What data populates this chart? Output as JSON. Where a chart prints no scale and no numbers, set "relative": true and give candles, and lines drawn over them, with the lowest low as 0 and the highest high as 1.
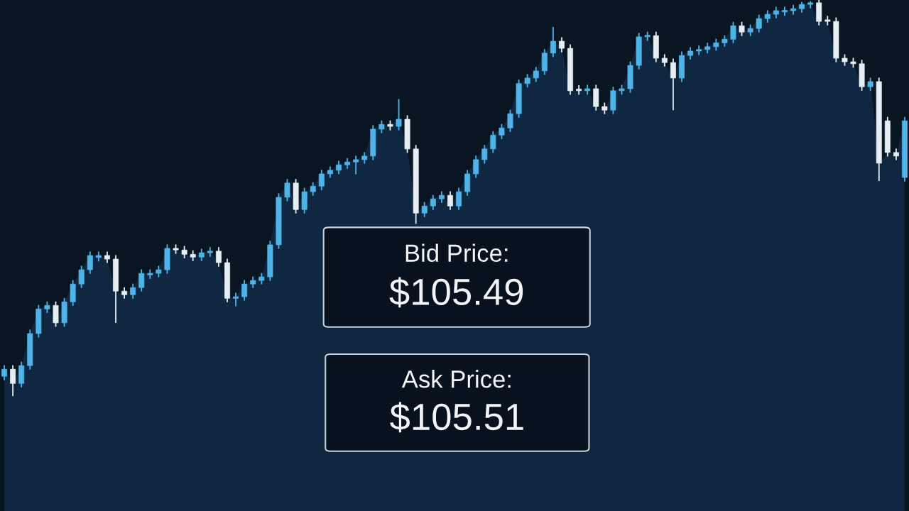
{
  "chart_data": {
    "type": "candlestick",
    "relative": true,
    "categories": [
      null,
      null,
      null,
      null,
      null,
      null,
      null,
      null,
      null,
      null,
      null,
      null,
      null,
      null,
      null,
      null,
      null,
      null,
      null,
      null,
      null,
      null,
      null,
      null,
      null,
      null,
      null,
      null,
      null,
      null,
      null,
      null,
      null,
      null,
      null,
      null,
      null,
      null,
      null,
      null,
      null,
      null,
      null,
      null,
      null,
      null,
      null,
      null,
      null,
      null,
      null,
      null,
      null,
      null,
      null,
      null,
      null,
      null,
      null,
      null,
      null,
      null,
      null,
      null,
      null,
      null,
      null,
      null,
      null,
      null,
      null,
      null,
      null,
      null,
      null,
      null,
      null,
      null,
      null,
      null,
      null,
      null,
      null,
      null,
      null,
      null,
      null,
      null,
      null,
      null,
      null,
      null,
      null,
      null,
      null,
      null,
      null,
      null,
      null,
      null,
      null,
      null,
      null,
      null,
      null,
      null
    ],
    "ohlc": [
      [
        0.05,
        0.078,
        0.04,
        0.068
      ],
      [
        0.068,
        0.078,
        0.0,
        0.032
      ],
      [
        0.032,
        0.087,
        0.022,
        0.077
      ],
      [
        0.077,
        0.168,
        0.067,
        0.158
      ],
      [
        0.158,
        0.23,
        0.148,
        0.22
      ],
      [
        0.22,
        0.239,
        0.21,
        0.229
      ],
      [
        0.229,
        0.239,
        0.175,
        0.185
      ],
      [
        0.185,
        0.248,
        0.175,
        0.238
      ],
      [
        0.238,
        0.293,
        0.228,
        0.283
      ],
      [
        0.283,
        0.329,
        0.273,
        0.319
      ],
      [
        0.319,
        0.365,
        0.309,
        0.355
      ],
      [
        0.35,
        0.365,
        0.34,
        0.355
      ],
      [
        0.355,
        0.365,
        0.336,
        0.346
      ],
      [
        0.346,
        0.356,
        0.185,
        0.265
      ],
      [
        0.265,
        0.275,
        0.246,
        0.256
      ],
      [
        0.256,
        0.284,
        0.246,
        0.274
      ],
      [
        0.274,
        0.32,
        0.264,
        0.31
      ],
      [
        0.306,
        0.32,
        0.296,
        0.31
      ],
      [
        0.31,
        0.329,
        0.3,
        0.319
      ],
      [
        0.319,
        0.383,
        0.309,
        0.373
      ],
      [
        0.373,
        0.383,
        0.359,
        0.369
      ],
      [
        0.369,
        0.379,
        0.348,
        0.358
      ],
      [
        0.358,
        0.368,
        0.341,
        0.351
      ],
      [
        0.351,
        0.372,
        0.341,
        0.362
      ],
      [
        0.362,
        0.376,
        0.352,
        0.366
      ],
      [
        0.366,
        0.376,
        0.327,
        0.337
      ],
      [
        0.337,
        0.347,
        0.237,
        0.247
      ],
      [
        0.247,
        0.261,
        0.227,
        0.251
      ],
      [
        0.251,
        0.293,
        0.241,
        0.283
      ],
      [
        0.283,
        0.302,
        0.273,
        0.292
      ],
      [
        0.292,
        0.311,
        0.282,
        0.301
      ],
      [
        0.301,
        0.392,
        0.291,
        0.382
      ],
      [
        0.382,
        0.512,
        0.372,
        0.502
      ],
      [
        0.502,
        0.548,
        0.492,
        0.538
      ],
      [
        0.538,
        0.548,
        0.461,
        0.471
      ],
      [
        0.471,
        0.526,
        0.461,
        0.516
      ],
      [
        0.516,
        0.54,
        0.506,
        0.53
      ],
      [
        0.53,
        0.571,
        0.52,
        0.561
      ],
      [
        0.561,
        0.58,
        0.551,
        0.57
      ],
      [
        0.57,
        0.594,
        0.56,
        0.584
      ],
      [
        0.584,
        0.601,
        0.574,
        0.591
      ],
      [
        0.591,
        0.607,
        0.56,
        0.597
      ],
      [
        0.597,
        0.616,
        0.587,
        0.606
      ],
      [
        0.606,
        0.684,
        0.596,
        0.674
      ],
      [
        0.674,
        0.696,
        0.664,
        0.686
      ],
      [
        0.686,
        0.696,
        0.671,
        0.681
      ],
      [
        0.681,
        0.75,
        0.671,
        0.699
      ],
      [
        0.699,
        0.709,
        0.614,
        0.624
      ],
      [
        0.624,
        0.634,
        0.435,
        0.462
      ],
      [
        0.462,
        0.49,
        0.452,
        0.48
      ],
      [
        0.48,
        0.508,
        0.47,
        0.498
      ],
      [
        0.498,
        0.517,
        0.488,
        0.507
      ],
      [
        0.507,
        0.517,
        0.47,
        0.48
      ],
      [
        0.48,
        0.526,
        0.47,
        0.516
      ],
      [
        0.516,
        0.571,
        0.506,
        0.561
      ],
      [
        0.561,
        0.607,
        0.551,
        0.597
      ],
      [
        0.597,
        0.634,
        0.587,
        0.624
      ],
      [
        0.624,
        0.669,
        0.614,
        0.659
      ],
      [
        0.659,
        0.687,
        0.649,
        0.677
      ],
      [
        0.677,
        0.723,
        0.667,
        0.713
      ],
      [
        0.713,
        0.799,
        0.703,
        0.789
      ],
      [
        0.789,
        0.813,
        0.779,
        0.803
      ],
      [
        0.803,
        0.831,
        0.793,
        0.821
      ],
      [
        0.821,
        0.876,
        0.811,
        0.866
      ],
      [
        0.866,
        0.932,
        0.856,
        0.896
      ],
      [
        0.896,
        0.906,
        0.868,
        0.878
      ],
      [
        0.878,
        0.888,
        0.761,
        0.771
      ],
      [
        0.775,
        0.785,
        0.761,
        0.771
      ],
      [
        0.771,
        0.786,
        0.761,
        0.776
      ],
      [
        0.776,
        0.786,
        0.721,
        0.731
      ],
      [
        0.731,
        0.741,
        0.712,
        0.722
      ],
      [
        0.722,
        0.781,
        0.712,
        0.771
      ],
      [
        0.771,
        0.786,
        0.761,
        0.776
      ],
      [
        0.776,
        0.845,
        0.766,
        0.835
      ],
      [
        0.835,
        0.917,
        0.825,
        0.907
      ],
      [
        0.907,
        0.92,
        0.897,
        0.91
      ],
      [
        0.91,
        0.92,
        0.843,
        0.853
      ],
      [
        0.853,
        0.863,
        0.832,
        0.842
      ],
      [
        0.842,
        0.852,
        0.722,
        0.803
      ],
      [
        0.803,
        0.87,
        0.793,
        0.86
      ],
      [
        0.86,
        0.881,
        0.85,
        0.871
      ],
      [
        0.871,
        0.885,
        0.861,
        0.875
      ],
      [
        0.875,
        0.892,
        0.865,
        0.882
      ],
      [
        0.882,
        0.902,
        0.872,
        0.892
      ],
      [
        0.892,
        0.911,
        0.882,
        0.901
      ],
      [
        0.901,
        0.945,
        0.891,
        0.935
      ],
      [
        0.935,
        0.945,
        0.909,
        0.919
      ],
      [
        0.919,
        0.938,
        0.909,
        0.928
      ],
      [
        0.928,
        0.963,
        0.918,
        0.953
      ],
      [
        0.953,
        0.974,
        0.943,
        0.964
      ],
      [
        0.964,
        0.983,
        0.954,
        0.973
      ],
      [
        0.97,
        0.983,
        0.96,
        0.973
      ],
      [
        0.973,
        0.988,
        0.963,
        0.978
      ],
      [
        0.978,
        0.995,
        0.968,
        0.989
      ],
      [
        0.989,
        0.997,
        0.979,
        0.993
      ],
      [
        0.993,
        1.0,
        0.936,
        0.946
      ],
      [
        0.95,
        0.96,
        0.936,
        0.946
      ],
      [
        0.946,
        0.956,
        0.843,
        0.853
      ],
      [
        0.853,
        0.863,
        0.834,
        0.844
      ],
      [
        0.844,
        0.854,
        0.829,
        0.839
      ],
      [
        0.839,
        0.849,
        0.771,
        0.781
      ],
      [
        0.781,
        0.804,
        0.771,
        0.794
      ],
      [
        0.794,
        0.804,
        0.543,
        0.588
      ],
      [
        0.695,
        0.705,
        0.605,
        0.615
      ],
      [
        0.615,
        0.625,
        0.596,
        0.606
      ],
      [
        0.552,
        0.705,
        0.542,
        0.695
      ]
    ],
    "colors": [
      "#4fb3e8",
      "#e6edf3",
      "#4fb3e8",
      "#4fb3e8",
      "#4fb3e8",
      "#4fb3e8",
      "#e6edf3",
      "#4fb3e8",
      "#4fb3e8",
      "#4fb3e8",
      "#4fb3e8",
      "#4fb3e8",
      "#e6edf3",
      "#e6edf3",
      "#e6edf3",
      "#4fb3e8",
      "#4fb3e8",
      "#4fb3e8",
      "#4fb3e8",
      "#4fb3e8",
      "#e6edf3",
      "#e6edf3",
      "#e6edf3",
      "#4fb3e8",
      "#4fb3e8",
      "#e6edf3",
      "#e6edf3",
      "#4fb3e8",
      "#4fb3e8",
      "#4fb3e8",
      "#4fb3e8",
      "#4fb3e8",
      "#4fb3e8",
      "#4fb3e8",
      "#e6edf3",
      "#4fb3e8",
      "#4fb3e8",
      "#4fb3e8",
      "#4fb3e8",
      "#4fb3e8",
      "#4fb3e8",
      "#4fb3e8",
      "#4fb3e8",
      "#4fb3e8",
      "#4fb3e8",
      "#e6edf3",
      "#4fb3e8",
      "#e6edf3",
      "#e6edf3",
      "#4fb3e8",
      "#4fb3e8",
      "#4fb3e8",
      "#e6edf3",
      "#4fb3e8",
      "#4fb3e8",
      "#4fb3e8",
      "#4fb3e8",
      "#4fb3e8",
      "#4fb3e8",
      "#4fb3e8",
      "#4fb3e8",
      "#4fb3e8",
      "#4fb3e8",
      "#4fb3e8",
      "#4fb3e8",
      "#e6edf3",
      "#e6edf3",
      "#e6edf3",
      "#4fb3e8",
      "#e6edf3",
      "#e6edf3",
      "#4fb3e8",
      "#4fb3e8",
      "#4fb3e8",
      "#4fb3e8",
      "#4fb3e8",
      "#e6edf3",
      "#e6edf3",
      "#e6edf3",
      "#4fb3e8",
      "#4fb3e8",
      "#4fb3e8",
      "#4fb3e8",
      "#4fb3e8",
      "#4fb3e8",
      "#4fb3e8",
      "#e6edf3",
      "#4fb3e8",
      "#4fb3e8",
      "#4fb3e8",
      "#4fb3e8",
      "#4fb3e8",
      "#4fb3e8",
      "#4fb3e8",
      "#4fb3e8",
      "#e6edf3",
      "#e6edf3",
      "#e6edf3",
      "#e6edf3",
      "#e6edf3",
      "#e6edf3",
      "#4fb3e8",
      "#e6edf3",
      "#e6edf3",
      "#e6edf3",
      "#4fb3e8"
    ],
    "annotations": [
      "Bid Price:",
      "$105.49",
      "Ask Price:",
      "$105.51"
    ]
  }
}
